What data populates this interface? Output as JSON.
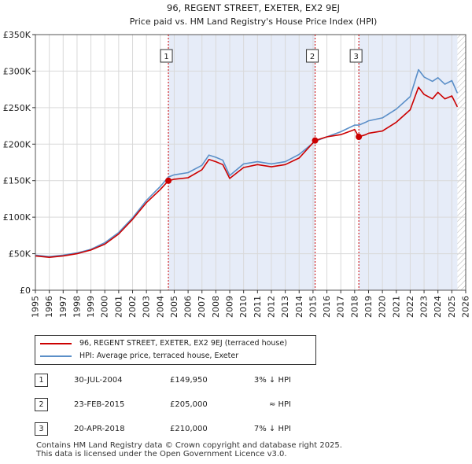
{
  "chart_data": {
    "type": "line",
    "title": "96, REGENT STREET, EXETER, EX2 9EJ",
    "subtitle": "Price paid vs. HM Land Registry's House Price Index (HPI)",
    "xlim": [
      1995,
      2026
    ],
    "ylim": [
      0,
      350000
    ],
    "y_ticks": [
      0,
      50000,
      100000,
      150000,
      200000,
      250000,
      300000,
      350000
    ],
    "y_tick_labels": [
      "£0",
      "£50K",
      "£100K",
      "£150K",
      "£200K",
      "£250K",
      "£300K",
      "£350K"
    ],
    "x_ticks": [
      1995,
      1996,
      1997,
      1998,
      1999,
      2000,
      2001,
      2002,
      2003,
      2004,
      2005,
      2006,
      2007,
      2008,
      2009,
      2010,
      2011,
      2012,
      2013,
      2014,
      2015,
      2016,
      2017,
      2018,
      2019,
      2020,
      2021,
      2022,
      2023,
      2024,
      2025,
      2026
    ],
    "x_tick_labels": [
      "1995",
      "1996",
      "1997",
      "1998",
      "1999",
      "2000",
      "2001",
      "2002",
      "2003",
      "2004",
      "2005",
      "2006",
      "2007",
      "2008",
      "2009",
      "2010",
      "2011",
      "2012",
      "2013",
      "2014",
      "2015",
      "2016",
      "2017",
      "2018",
      "2019",
      "2020",
      "2021",
      "2022",
      "2023",
      "2024",
      "2025",
      "2026"
    ],
    "grid": true,
    "shaded_periods": [
      [
        2004.58,
        2015.15
      ],
      [
        2018.3,
        2025.4
      ]
    ],
    "hatched_from": 2025.4,
    "series": [
      {
        "name": "96, REGENT STREET, EXETER, EX2 9EJ (terraced house)",
        "color": "#cc0000",
        "x": [
          1995,
          1996,
          1997,
          1998,
          1999,
          2000,
          2001,
          2002,
          2003,
          2004,
          2004.58,
          2005,
          2006,
          2007,
          2007.5,
          2008,
          2008.5,
          2009,
          2010,
          2011,
          2012,
          2013,
          2014,
          2015.15,
          2016,
          2017,
          2018,
          2018.3,
          2018.8,
          2019,
          2020,
          2021,
          2022,
          2022.6,
          2023,
          2023.6,
          2024,
          2024.5,
          2025,
          2025.4
        ],
        "values": [
          47000,
          45000,
          47000,
          50000,
          55000,
          63000,
          77000,
          97000,
          120000,
          138000,
          149950,
          152000,
          154000,
          165000,
          179000,
          176000,
          172000,
          153000,
          168000,
          172000,
          169000,
          172000,
          181000,
          205000,
          210000,
          213000,
          220000,
          210000,
          213000,
          215000,
          218000,
          230000,
          247000,
          278000,
          268000,
          262000,
          271000,
          262000,
          266000,
          251000
        ]
      },
      {
        "name": "HPI: Average price, terraced house, Exeter",
        "color": "#5b8fc8",
        "x": [
          1995,
          1996,
          1997,
          1998,
          1999,
          2000,
          2001,
          2002,
          2003,
          2004,
          2004.58,
          2005,
          2006,
          2007,
          2007.5,
          2008,
          2008.5,
          2009,
          2010,
          2011,
          2012,
          2013,
          2014,
          2015.15,
          2016,
          2017,
          2018,
          2018.3,
          2018.8,
          2019,
          2020,
          2021,
          2022,
          2022.6,
          2023,
          2023.6,
          2024,
          2024.5,
          2025,
          2025.4
        ],
        "values": [
          48000,
          46000,
          48000,
          51000,
          56000,
          65000,
          79000,
          99000,
          123000,
          142000,
          155000,
          158000,
          161000,
          171000,
          185000,
          182000,
          178000,
          157000,
          173000,
          176000,
          173000,
          176000,
          186000,
          204000,
          210000,
          217000,
          226000,
          226000,
          230000,
          232000,
          236000,
          248000,
          265000,
          302000,
          292000,
          286000,
          291000,
          282000,
          287000,
          270000
        ]
      }
    ],
    "transactions": [
      {
        "n": "1",
        "x": 2004.58,
        "y": 149950
      },
      {
        "n": "2",
        "x": 2015.15,
        "y": 205000
      },
      {
        "n": "3",
        "x": 2018.3,
        "y": 210000
      }
    ]
  },
  "legend": {
    "property": "96, REGENT STREET, EXETER, EX2 9EJ (terraced house)",
    "hpi": "HPI: Average price, terraced house, Exeter"
  },
  "table": [
    {
      "n": "1",
      "date": "30-JUL-2004",
      "price": "£149,950",
      "rel": "3% ↓ HPI"
    },
    {
      "n": "2",
      "date": "23-FEB-2015",
      "price": "£205,000",
      "rel": "≈ HPI"
    },
    {
      "n": "3",
      "date": "20-APR-2018",
      "price": "£210,000",
      "rel": "7% ↓ HPI"
    }
  ],
  "footer": {
    "line1": "Contains HM Land Registry data © Crown copyright and database right 2025.",
    "line2": "This data is licensed under the Open Government Licence v3.0."
  }
}
